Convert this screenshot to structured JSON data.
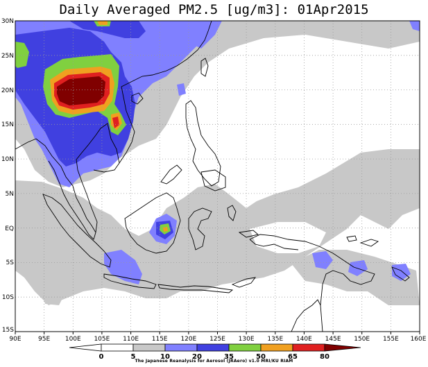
{
  "title": "Daily Averaged PM2.5 [ug/m3]: 01Apr2015",
  "map": {
    "lon_range": [
      90,
      160
    ],
    "lat_range": [
      -15,
      30
    ],
    "lon_ticks": [
      "90E",
      "95E",
      "100E",
      "105E",
      "110E",
      "115E",
      "120E",
      "125E",
      "130E",
      "135E",
      "140E",
      "145E",
      "150E",
      "155E",
      "160E"
    ],
    "lat_ticks": [
      "30N",
      "25N",
      "20N",
      "15N",
      "10N",
      "5N",
      "EQ",
      "5S",
      "10S",
      "15S"
    ],
    "gridlines": "dotted"
  },
  "colorbar": {
    "levels": [
      "0",
      "5",
      "10",
      "20",
      "35",
      "50",
      "65",
      "80"
    ],
    "colors": [
      "#ffffff",
      "#ffffff",
      "#c8c8c8",
      "#8080ff",
      "#4040e0",
      "#80d040",
      "#f0a020",
      "#e02020",
      "#800000"
    ]
  },
  "credit": "The Japanese Reanalysis for Aerosol (JRAero) v1.0 MRI/KU RIAM"
}
